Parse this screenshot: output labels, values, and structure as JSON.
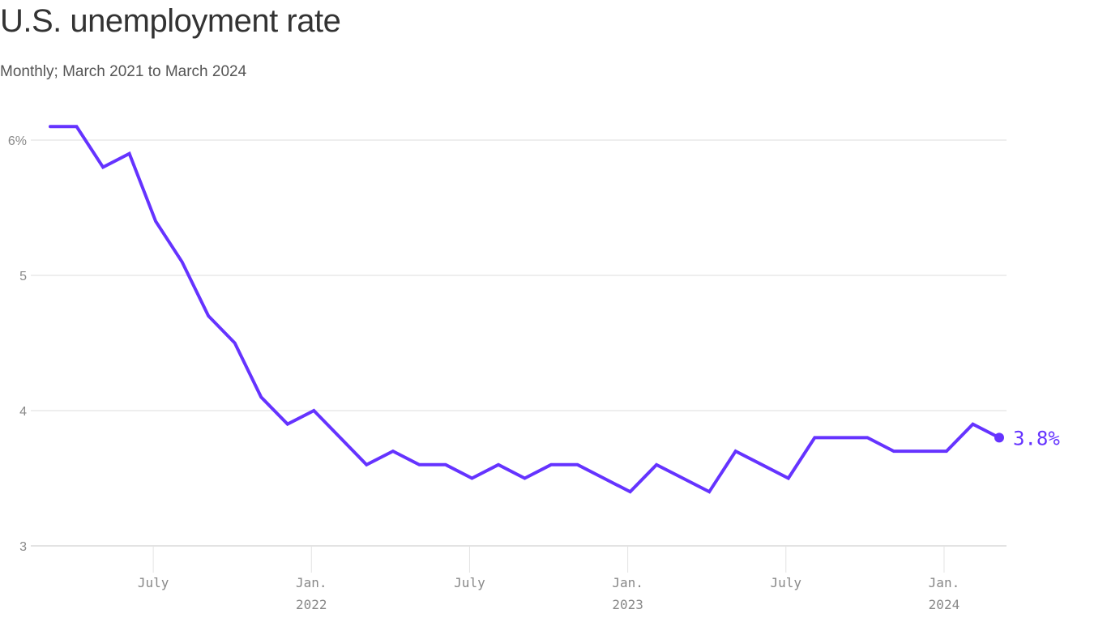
{
  "header": {
    "title": "U.S. unemployment rate",
    "subtitle": "Monthly; March 2021 to March 2024"
  },
  "colors": {
    "line": "#6533ff",
    "grid": "#dddddd",
    "axis_text": "#888888",
    "title": "#333333"
  },
  "end_label": "3.8%",
  "chart_data": {
    "type": "line",
    "title": "U.S. unemployment rate",
    "subtitle": "Monthly; March 2021 to March 2024",
    "xlabel": "",
    "ylabel": "",
    "ylim": [
      3,
      6.1
    ],
    "yticks": [
      {
        "value": 6,
        "label": "6%"
      },
      {
        "value": 5,
        "label": "5"
      },
      {
        "value": 4,
        "label": "4"
      },
      {
        "value": 3,
        "label": "3"
      }
    ],
    "xticks": [
      {
        "index": 4,
        "label": "July",
        "sublabel": ""
      },
      {
        "index": 10,
        "label": "Jan.",
        "sublabel": "2022"
      },
      {
        "index": 16,
        "label": "July",
        "sublabel": ""
      },
      {
        "index": 22,
        "label": "Jan.",
        "sublabel": "2023"
      },
      {
        "index": 28,
        "label": "July",
        "sublabel": ""
      },
      {
        "index": 34,
        "label": "Jan.",
        "sublabel": "2024"
      }
    ],
    "grid": true,
    "legend": "none",
    "annotation": {
      "text": "3.8%",
      "position": "end of line"
    },
    "x": [
      "2021-03",
      "2021-04",
      "2021-05",
      "2021-06",
      "2021-07",
      "2021-08",
      "2021-09",
      "2021-10",
      "2021-11",
      "2021-12",
      "2022-01",
      "2022-02",
      "2022-03",
      "2022-04",
      "2022-05",
      "2022-06",
      "2022-07",
      "2022-08",
      "2022-09",
      "2022-10",
      "2022-11",
      "2022-12",
      "2023-01",
      "2023-02",
      "2023-03",
      "2023-04",
      "2023-05",
      "2023-06",
      "2023-07",
      "2023-08",
      "2023-09",
      "2023-10",
      "2023-11",
      "2023-12",
      "2024-01",
      "2024-02",
      "2024-03"
    ],
    "series": [
      {
        "name": "Unemployment rate",
        "values": [
          6.1,
          6.1,
          5.8,
          5.9,
          5.4,
          5.1,
          4.7,
          4.5,
          4.1,
          3.9,
          4.0,
          3.8,
          3.6,
          3.7,
          3.6,
          3.6,
          3.5,
          3.6,
          3.5,
          3.6,
          3.6,
          3.5,
          3.4,
          3.6,
          3.5,
          3.4,
          3.7,
          3.6,
          3.5,
          3.8,
          3.8,
          3.8,
          3.7,
          3.7,
          3.7,
          3.9,
          3.8
        ]
      }
    ]
  }
}
